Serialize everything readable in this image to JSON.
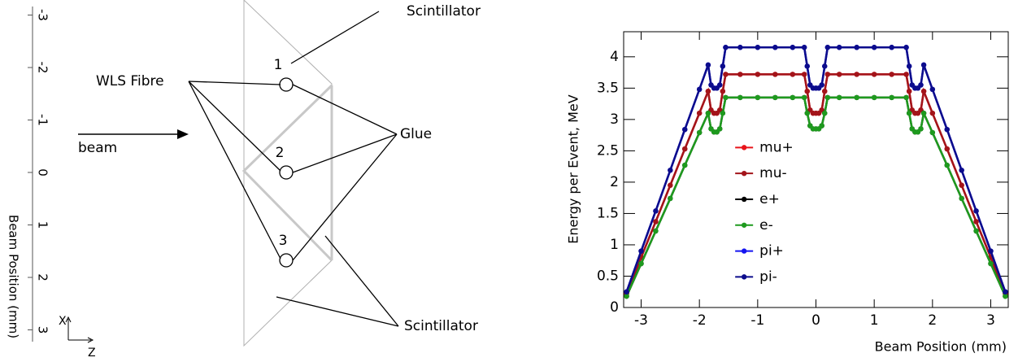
{
  "diagram": {
    "axis": {
      "label": "Beam Position (mm)",
      "ticks": [
        -3,
        -2,
        -1,
        0,
        1,
        2,
        3
      ]
    },
    "labels": {
      "wls_fibre": "WLS Fibre",
      "beam": "beam",
      "scintillator_top": "Scintillator",
      "glue": "Glue",
      "scintillator_bottom": "Scintillator",
      "fibre_1": "1",
      "fibre_2": "2",
      "fibre_3": "3",
      "x_axis": "X",
      "z_axis": "Z"
    }
  },
  "chart_data": {
    "type": "line",
    "xlabel": "Beam Position (mm)",
    "ylabel": "Energy per Event, MeV",
    "x": [
      -3.25,
      -3.0,
      -2.75,
      -2.5,
      -2.25,
      -2.0,
      -1.85,
      -1.8,
      -1.75,
      -1.7,
      -1.65,
      -1.6,
      -1.55,
      -1.3,
      -1.0,
      -0.7,
      -0.4,
      -0.2,
      -0.15,
      -0.1,
      -0.05,
      0,
      0.05,
      0.1,
      0.15,
      0.2,
      0.4,
      0.7,
      1.0,
      1.3,
      1.55,
      1.6,
      1.65,
      1.7,
      1.75,
      1.8,
      1.85,
      2.0,
      2.25,
      2.5,
      2.75,
      3.0,
      3.25
    ],
    "xlim": [
      -3.3,
      3.3
    ],
    "xticks": [
      -3,
      -2,
      -1,
      0,
      1,
      2,
      3
    ],
    "ylim": [
      0,
      4.4
    ],
    "yticks": [
      0,
      0.5,
      1,
      1.5,
      2,
      2.5,
      3,
      3.5,
      4
    ],
    "legend_loc": "center",
    "series": [
      {
        "name": "mu+",
        "color": "#e8141a",
        "values": [
          0.22,
          0.8,
          1.37,
          1.95,
          2.53,
          3.1,
          3.45,
          3.15,
          3.1,
          3.1,
          3.15,
          3.45,
          3.72,
          3.72,
          3.72,
          3.72,
          3.72,
          3.72,
          3.45,
          3.15,
          3.1,
          3.1,
          3.1,
          3.15,
          3.45,
          3.72,
          3.72,
          3.72,
          3.72,
          3.72,
          3.72,
          3.45,
          3.15,
          3.1,
          3.1,
          3.15,
          3.45,
          3.1,
          2.53,
          1.95,
          1.37,
          0.8,
          0.22
        ]
      },
      {
        "name": "mu-",
        "color": "#a3141a",
        "values": [
          0.22,
          0.8,
          1.37,
          1.95,
          2.53,
          3.1,
          3.45,
          3.15,
          3.1,
          3.1,
          3.15,
          3.45,
          3.72,
          3.72,
          3.72,
          3.72,
          3.72,
          3.72,
          3.45,
          3.15,
          3.1,
          3.1,
          3.1,
          3.15,
          3.45,
          3.72,
          3.72,
          3.72,
          3.72,
          3.72,
          3.72,
          3.45,
          3.15,
          3.1,
          3.1,
          3.15,
          3.45,
          3.1,
          2.53,
          1.95,
          1.37,
          0.8,
          0.22
        ]
      },
      {
        "name": "e+",
        "color": "#000000",
        "values": [
          0.18,
          0.7,
          1.22,
          1.74,
          2.27,
          2.79,
          3.1,
          2.85,
          2.8,
          2.8,
          2.85,
          3.1,
          3.35,
          3.35,
          3.35,
          3.35,
          3.35,
          3.35,
          3.1,
          2.9,
          2.85,
          2.85,
          2.85,
          2.9,
          3.1,
          3.35,
          3.35,
          3.35,
          3.35,
          3.35,
          3.35,
          3.1,
          2.85,
          2.8,
          2.8,
          2.85,
          3.1,
          2.79,
          2.27,
          1.74,
          1.22,
          0.7,
          0.18
        ]
      },
      {
        "name": "e-",
        "color": "#1e9a1e",
        "values": [
          0.18,
          0.7,
          1.22,
          1.74,
          2.27,
          2.79,
          3.1,
          2.85,
          2.8,
          2.8,
          2.85,
          3.1,
          3.35,
          3.35,
          3.35,
          3.35,
          3.35,
          3.35,
          3.1,
          2.9,
          2.85,
          2.85,
          2.85,
          2.9,
          3.1,
          3.35,
          3.35,
          3.35,
          3.35,
          3.35,
          3.35,
          3.1,
          2.85,
          2.8,
          2.8,
          2.85,
          3.1,
          2.79,
          2.27,
          1.74,
          1.22,
          0.7,
          0.18
        ]
      },
      {
        "name": "pi+",
        "color": "#1414f0",
        "values": [
          0.25,
          0.9,
          1.54,
          2.19,
          2.84,
          3.48,
          3.87,
          3.55,
          3.5,
          3.5,
          3.55,
          3.85,
          4.15,
          4.15,
          4.15,
          4.15,
          4.15,
          4.15,
          3.85,
          3.55,
          3.5,
          3.5,
          3.5,
          3.55,
          3.85,
          4.15,
          4.15,
          4.15,
          4.15,
          4.15,
          4.15,
          3.85,
          3.55,
          3.5,
          3.5,
          3.55,
          3.87,
          3.48,
          2.84,
          2.19,
          1.54,
          0.9,
          0.25
        ]
      },
      {
        "name": "pi-",
        "color": "#0c0c8c",
        "values": [
          0.25,
          0.9,
          1.54,
          2.19,
          2.84,
          3.48,
          3.87,
          3.55,
          3.5,
          3.5,
          3.55,
          3.85,
          4.15,
          4.15,
          4.15,
          4.15,
          4.15,
          4.15,
          3.85,
          3.55,
          3.5,
          3.5,
          3.5,
          3.55,
          3.85,
          4.15,
          4.15,
          4.15,
          4.15,
          4.15,
          4.15,
          3.85,
          3.55,
          3.5,
          3.5,
          3.55,
          3.87,
          3.48,
          2.84,
          2.19,
          1.54,
          0.9,
          0.25
        ]
      }
    ]
  }
}
